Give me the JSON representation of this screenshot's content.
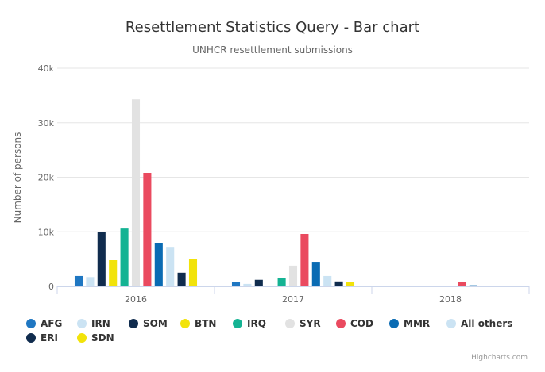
{
  "chart_data": {
    "type": "bar",
    "title": "Resettlement Statistics Query - Bar chart",
    "subtitle": "UNHCR resettlement submissions",
    "ylabel": "Number of persons",
    "xlabel": "",
    "ylim": [
      0,
      40000
    ],
    "yticks": [
      0,
      10000,
      20000,
      30000,
      40000
    ],
    "ytick_labels": [
      "0",
      "10k",
      "20k",
      "30k",
      "40k"
    ],
    "grid": true,
    "legend_position": "bottom-left",
    "categories": [
      "2016",
      "2017",
      "2018"
    ],
    "series": [
      {
        "name": "AFG",
        "color": "#1f77c2",
        "values": [
          1900,
          750,
          0
        ]
      },
      {
        "name": "IRN",
        "color": "#cbe3f3",
        "values": [
          1700,
          450,
          0
        ]
      },
      {
        "name": "SOM",
        "color": "#102c4e",
        "values": [
          10000,
          1200,
          0
        ]
      },
      {
        "name": "BTN",
        "color": "#f2e30a",
        "values": [
          4800,
          0,
          0
        ]
      },
      {
        "name": "IRQ",
        "color": "#14b393",
        "values": [
          10600,
          1600,
          0
        ]
      },
      {
        "name": "SYR",
        "color": "#e2e2e2",
        "values": [
          34300,
          3800,
          0
        ]
      },
      {
        "name": "COD",
        "color": "#ea4a5f",
        "values": [
          20800,
          9600,
          800
        ]
      },
      {
        "name": "MMR",
        "color": "#0a6bb3",
        "values": [
          8000,
          4500,
          200
        ]
      },
      {
        "name": "All others",
        "color": "#cbe3f3",
        "values": [
          7100,
          1900,
          0
        ]
      },
      {
        "name": "ERI",
        "color": "#102c4e",
        "values": [
          2500,
          900,
          0
        ]
      },
      {
        "name": "SDN",
        "color": "#f2e30a",
        "values": [
          5000,
          800,
          0
        ]
      }
    ]
  },
  "legend": {
    "row1": [
      {
        "label": "AFG",
        "icon": "circle",
        "color": "#1f77c2"
      },
      {
        "label": "IRN",
        "icon": "circle",
        "color": "#cbe3f3"
      },
      {
        "label": "SOM",
        "icon": "circle",
        "color": "#102c4e"
      },
      {
        "label": "BTN",
        "icon": "circle",
        "color": "#f2e30a"
      },
      {
        "label": "IRQ",
        "icon": "circle",
        "color": "#14b393"
      },
      {
        "label": "SYR",
        "icon": "circle",
        "color": "#e2e2e2"
      },
      {
        "label": "COD",
        "icon": "circle",
        "color": "#ea4a5f"
      },
      {
        "label": "MMR",
        "icon": "circle",
        "color": "#0a6bb3"
      },
      {
        "label": "All others",
        "icon": "circle",
        "color": "#cbe3f3"
      }
    ],
    "row2": [
      {
        "label": "ERI",
        "icon": "circle",
        "color": "#102c4e"
      },
      {
        "label": "SDN",
        "icon": "circle",
        "color": "#f2e30a"
      }
    ]
  },
  "credits": "Highcharts.com"
}
